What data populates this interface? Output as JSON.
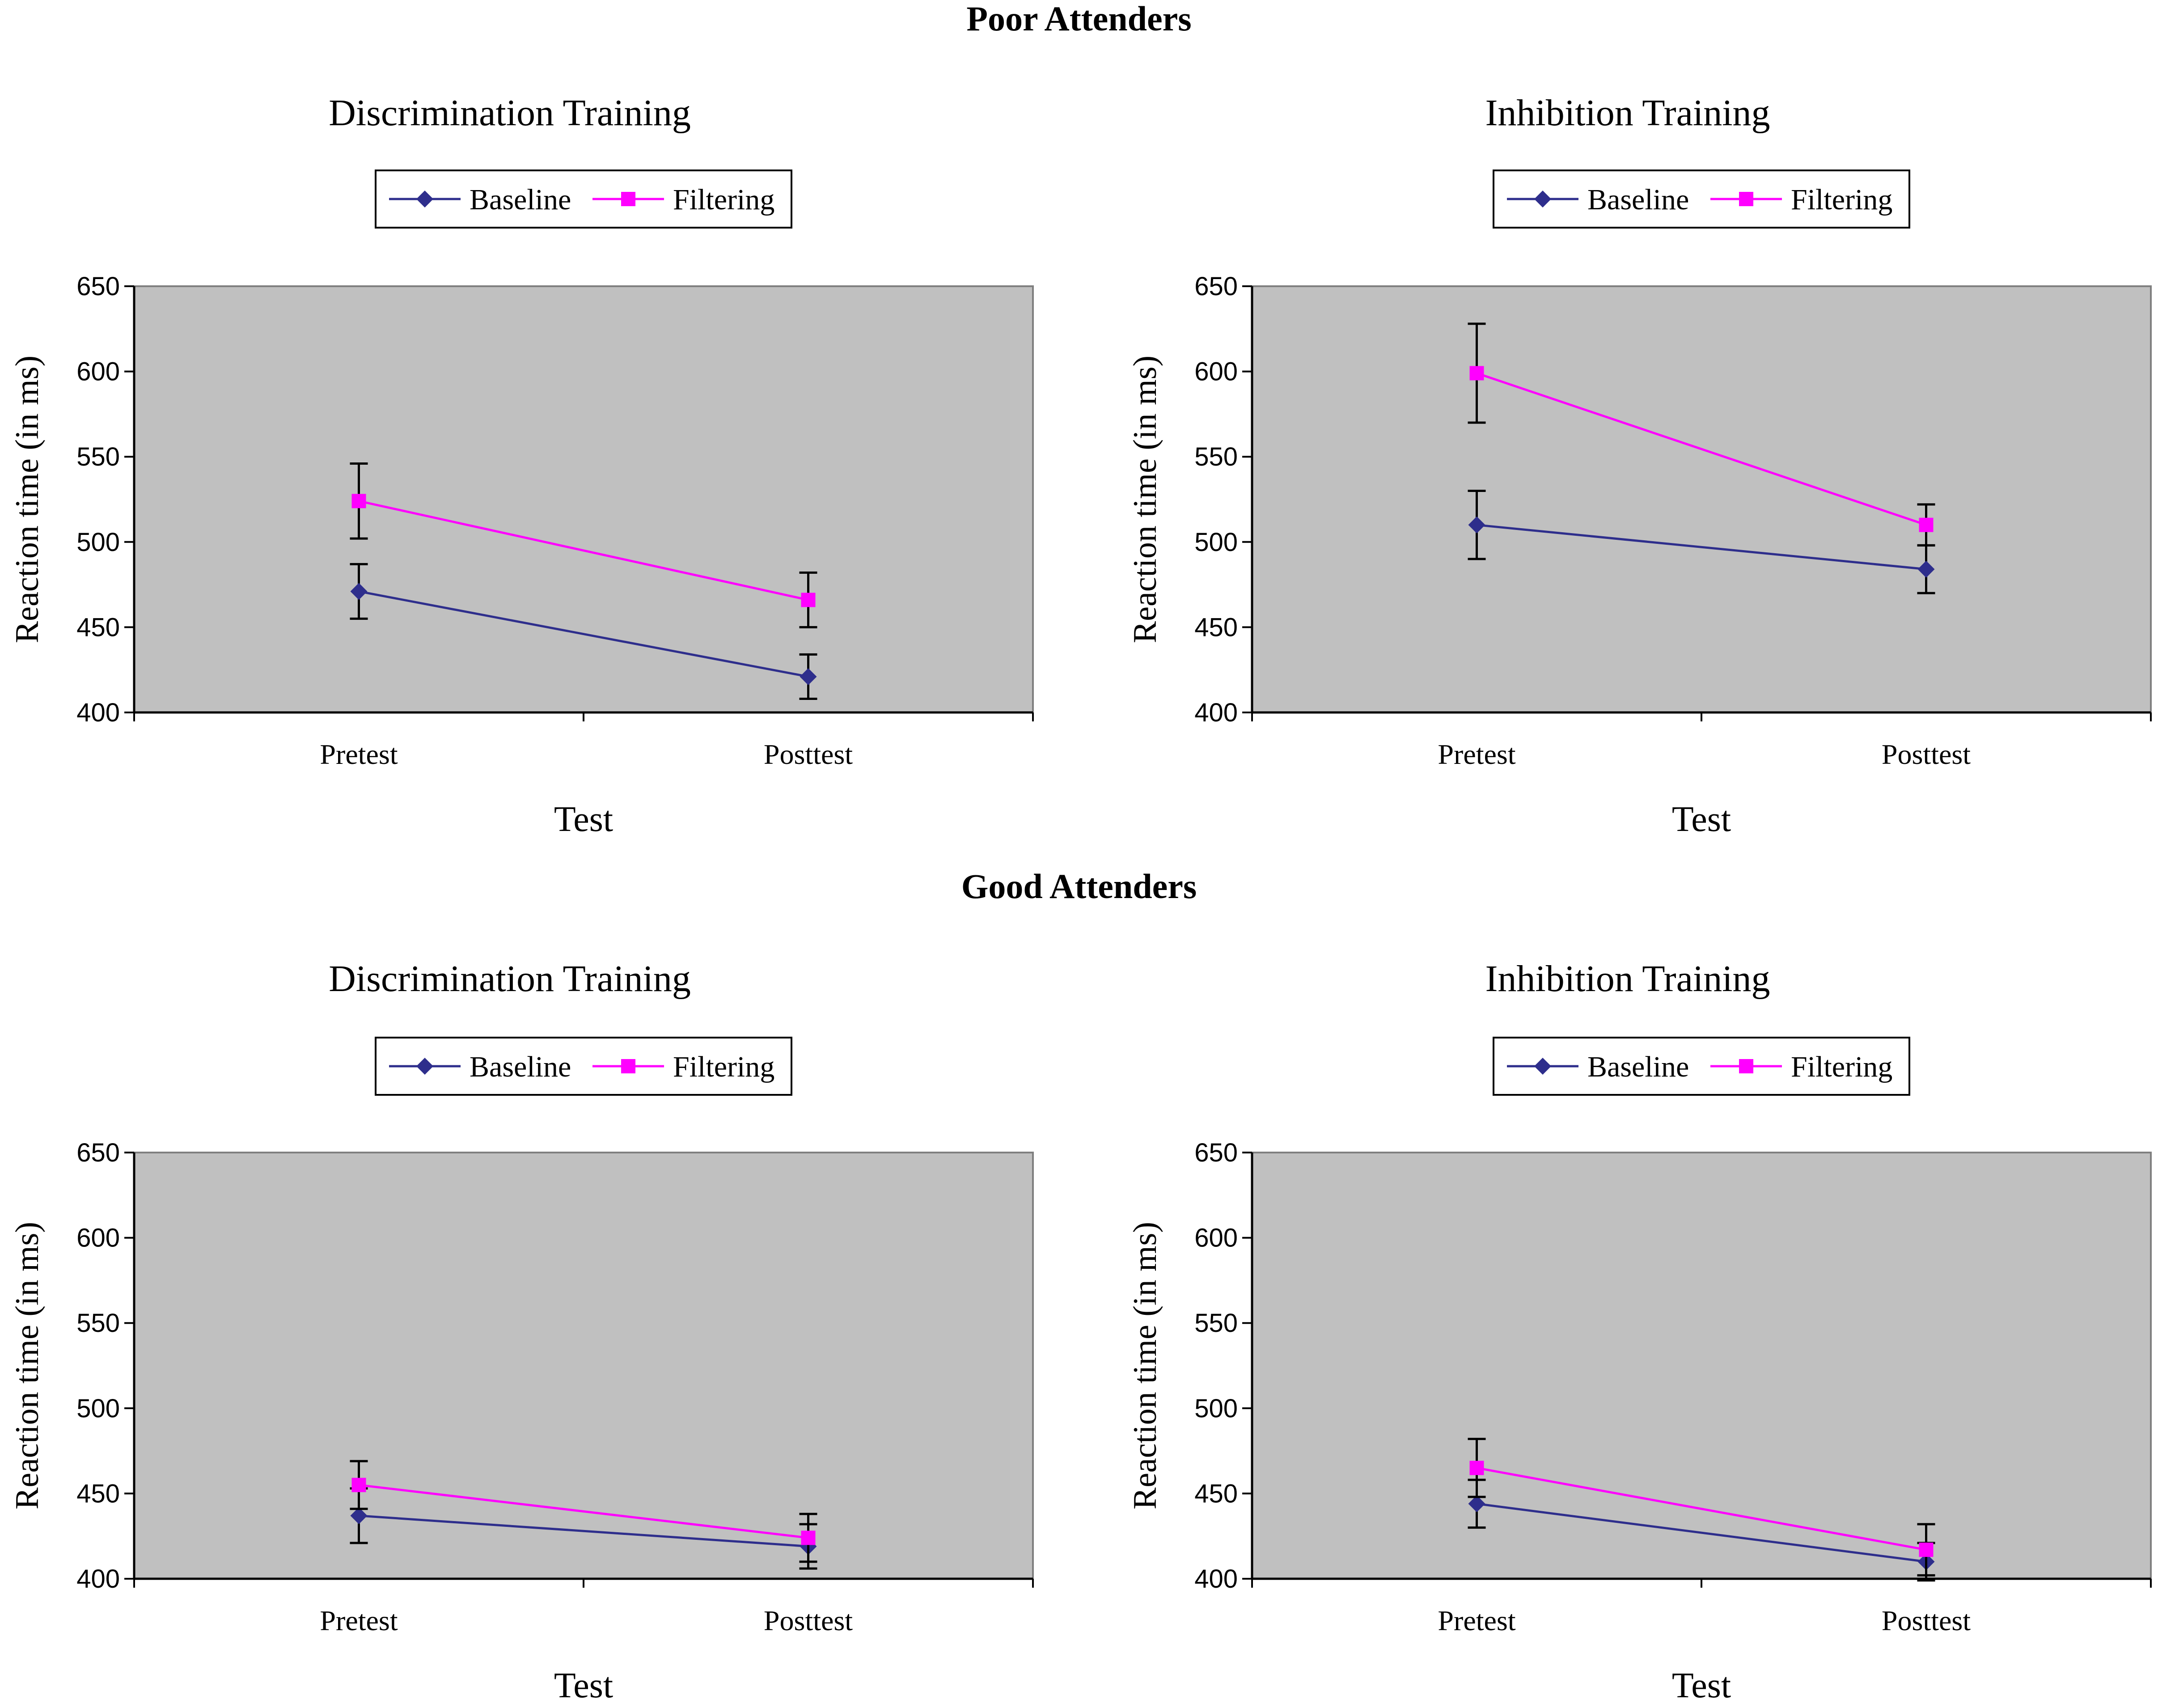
{
  "sections": [
    {
      "title": "Poor Attenders"
    },
    {
      "title": "Good Attenders"
    }
  ],
  "chart_data": [
    {
      "type": "line",
      "group": "Poor Attenders",
      "title": "Discrimination Training",
      "xlabel": "Test",
      "ylabel": "Reaction time (in ms)",
      "ylim": [
        400,
        650
      ],
      "yticks": [
        400,
        450,
        500,
        550,
        600,
        650
      ],
      "categories": [
        "Pretest",
        "Posttest"
      ],
      "legend": [
        "Baseline",
        "Filtering"
      ],
      "series": [
        {
          "name": "Baseline",
          "color": "#2e2e8c",
          "marker": "diamond",
          "values": [
            471,
            421
          ],
          "errors": [
            16,
            13
          ]
        },
        {
          "name": "Filtering",
          "color": "#ff00ff",
          "marker": "square",
          "values": [
            524,
            466
          ],
          "errors": [
            22,
            16
          ]
        }
      ]
    },
    {
      "type": "line",
      "group": "Poor Attenders",
      "title": "Inhibition Training",
      "xlabel": "Test",
      "ylabel": "Reaction time (in ms)",
      "ylim": [
        400,
        650
      ],
      "yticks": [
        400,
        450,
        500,
        550,
        600,
        650
      ],
      "categories": [
        "Pretest",
        "Posttest"
      ],
      "legend": [
        "Baseline",
        "Filtering"
      ],
      "series": [
        {
          "name": "Baseline",
          "color": "#2e2e8c",
          "marker": "diamond",
          "values": [
            510,
            484
          ],
          "errors": [
            20,
            14
          ]
        },
        {
          "name": "Filtering",
          "color": "#ff00ff",
          "marker": "square",
          "values": [
            599,
            510
          ],
          "errors": [
            29,
            12
          ]
        }
      ]
    },
    {
      "type": "line",
      "group": "Good Attenders",
      "title": "Discrimination Training",
      "xlabel": "Test",
      "ylabel": "Reaction time (in ms)",
      "ylim": [
        400,
        650
      ],
      "yticks": [
        400,
        450,
        500,
        550,
        600,
        650
      ],
      "categories": [
        "Pretest",
        "Posttest"
      ],
      "legend": [
        "Baseline",
        "Filtering"
      ],
      "series": [
        {
          "name": "Baseline",
          "color": "#2e2e8c",
          "marker": "diamond",
          "values": [
            437,
            419
          ],
          "errors": [
            16,
            13
          ]
        },
        {
          "name": "Filtering",
          "color": "#ff00ff",
          "marker": "square",
          "values": [
            455,
            424
          ],
          "errors": [
            14,
            14
          ]
        }
      ]
    },
    {
      "type": "line",
      "group": "Good Attenders",
      "title": "Inhibition Training",
      "xlabel": "Test",
      "ylabel": "Reaction time (in ms)",
      "ylim": [
        400,
        650
      ],
      "yticks": [
        400,
        450,
        500,
        550,
        600,
        650
      ],
      "categories": [
        "Pretest",
        "Posttest"
      ],
      "legend": [
        "Baseline",
        "Filtering"
      ],
      "series": [
        {
          "name": "Baseline",
          "color": "#2e2e8c",
          "marker": "diamond",
          "values": [
            444,
            410
          ],
          "errors": [
            14,
            11
          ]
        },
        {
          "name": "Filtering",
          "color": "#ff00ff",
          "marker": "square",
          "values": [
            465,
            417
          ],
          "errors": [
            17,
            15
          ]
        }
      ]
    }
  ]
}
